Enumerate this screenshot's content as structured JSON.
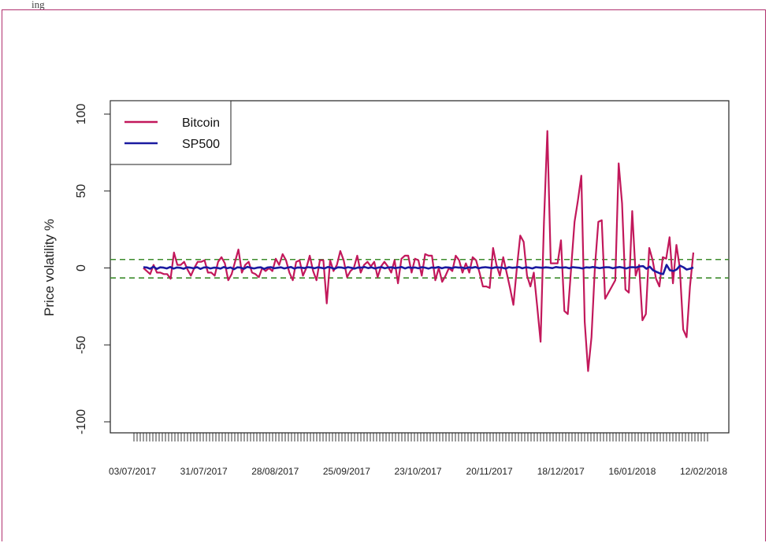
{
  "caption_fragment": "ing                                                                  ",
  "colors": {
    "bitcoin": "#c2185b",
    "sp500": "#1a1aa0",
    "threshold": "#3c8c2c",
    "frame": "#b0306e"
  },
  "chart_data": {
    "type": "line",
    "ylabel": "Price volatility %",
    "xlabel": "",
    "ylim": [
      -100,
      100
    ],
    "yticks": [
      -100,
      -50,
      0,
      50,
      100
    ],
    "grid": false,
    "legend_position": "top-left",
    "date_tick_labels": [
      "03/07/2017",
      "31/07/2017",
      "28/08/2017",
      "25/09/2017",
      "23/10/2017",
      "20/11/2017",
      "18/12/2017",
      "16/01/2018",
      "12/02/2018"
    ],
    "x_start": "03/07/2017",
    "x_end": "16/02/2018",
    "reference_lines": [
      5.5,
      -6.5
    ],
    "series": [
      {
        "name": "Bitcoin",
        "values": [
          0,
          -2,
          -4,
          2,
          -3,
          -3,
          -4,
          -4,
          -7,
          10,
          2,
          2,
          4,
          -1,
          -5,
          0,
          4,
          4,
          5,
          -3,
          -3,
          -5,
          4,
          7,
          3,
          -8,
          -4,
          4,
          12,
          -3,
          2,
          4,
          -3,
          -4,
          -6,
          0,
          -2,
          0,
          -2,
          6,
          2,
          9,
          5,
          -3,
          -8,
          4,
          5,
          -5,
          0,
          8,
          -2,
          -8,
          5,
          5,
          -23,
          5,
          -2,
          2,
          11,
          5,
          -6,
          -2,
          0,
          8,
          -3,
          2,
          4,
          1,
          4,
          -6,
          1,
          4,
          1,
          -3,
          5,
          -10,
          6,
          8,
          8,
          -3,
          6,
          5,
          -5,
          9,
          8,
          8,
          -8,
          0,
          -9,
          -5,
          0,
          -2,
          8,
          5,
          -3,
          3,
          -3,
          7,
          5,
          -3,
          -12,
          -12,
          -13,
          13,
          2,
          -5,
          7,
          -3,
          -13,
          -24,
          0,
          21,
          17,
          -5,
          -12,
          -3,
          -25,
          -48,
          30,
          89,
          3,
          3,
          3,
          18,
          -28,
          -30,
          0,
          30,
          44,
          60,
          -35,
          -67,
          -45,
          0,
          30,
          31,
          -20,
          -16,
          -12,
          -8,
          68,
          42,
          -14,
          -16,
          37,
          -5,
          2,
          -34,
          -30,
          13,
          5,
          -7,
          -12,
          7,
          6,
          20,
          -10,
          15,
          0,
          -40,
          -45,
          -12,
          10
        ],
        "color": "#c2185b"
      },
      {
        "name": "SP500",
        "values": [
          0.5,
          0.3,
          -0.5,
          0.8,
          -0.6,
          0.4,
          0.2,
          -0.3,
          0.6,
          -0.4,
          0.3,
          0.1,
          -0.5,
          0.4,
          0.2,
          -0.2,
          0.5,
          -0.6,
          0.3,
          0.4,
          -0.3,
          0.2,
          0.1,
          -0.4,
          0.6,
          -0.2,
          0.3,
          -0.8,
          0.4,
          0.2,
          -0.5,
          0.7,
          0.1,
          -0.3,
          0.2,
          0.4,
          -0.6,
          0.3,
          0.5,
          -0.2,
          0.1,
          0.4,
          -0.3,
          0.2,
          0.6,
          -0.4,
          0.3,
          0.2,
          -0.1,
          0.5,
          0.3,
          -0.2,
          0.4,
          0.1,
          -0.3,
          0.6,
          0.2,
          -0.5,
          0.4,
          0.3,
          -0.2,
          0.5,
          0.1,
          -0.4,
          0.3,
          0.2,
          0.6,
          -0.1,
          0.4,
          -0.3,
          0.2,
          0.5,
          -0.2,
          0.3,
          0.4,
          -0.1,
          0.2,
          0.6,
          -0.3,
          0.4,
          0.1,
          0.3,
          -0.2,
          0.5,
          0.2,
          -0.4,
          0.3,
          0.1,
          0.6,
          -0.2,
          0.4,
          0.3,
          -0.1,
          0.5,
          0.2,
          0.3,
          -0.3,
          0.4,
          0.1,
          0.6,
          -0.2,
          0.3,
          0.5,
          0.2,
          -0.1,
          0.4,
          0.3,
          0.2,
          -0.4,
          0.5,
          0.1,
          0.3,
          0.6,
          -0.2,
          0.4,
          0.2,
          -0.3,
          0.5,
          0.3,
          0.1,
          0.4,
          0.2,
          -0.1,
          0.6,
          0.3,
          0.2,
          0.4,
          -0.2,
          0.5,
          0.3,
          0.1,
          -0.3,
          0.4,
          0.2,
          0.6,
          0.3,
          -0.1,
          0.2,
          0.5,
          0.4,
          -0.2,
          0.3,
          0.6,
          0.2,
          -0.3,
          0.4,
          0.5,
          0.3,
          1.0,
          1.2,
          -0.5,
          0.8,
          -1.5,
          -2.5,
          -3.5,
          -4.0,
          2.0,
          -1.5,
          -2.0,
          -1.0,
          1.5,
          0.5,
          -1.0,
          -0.5,
          0.3
        ],
        "color": "#1a1aa0"
      }
    ]
  }
}
